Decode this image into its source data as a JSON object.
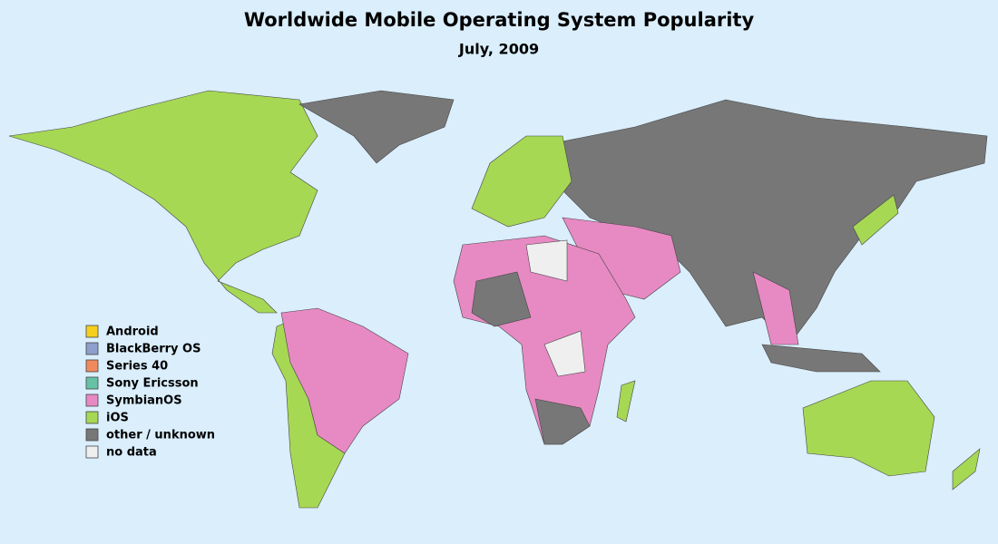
{
  "title": "Worldwide Mobile Operating System Popularity",
  "subtitle": "July, 2009",
  "background": "#daeefc",
  "legend": {
    "items": [
      {
        "label": "Android",
        "color": "#f6cf1f"
      },
      {
        "label": "BlackBerry OS",
        "color": "#8d9fcb"
      },
      {
        "label": "Series 40",
        "color": "#f08a5d"
      },
      {
        "label": "Sony Ericsson",
        "color": "#66c2a5"
      },
      {
        "label": "SymbianOS",
        "color": "#e78ac3"
      },
      {
        "label": "iOS",
        "color": "#a6d854"
      },
      {
        "label": "other / unknown",
        "color": "#777777"
      },
      {
        "label": "no data",
        "color": "#efefef"
      }
    ]
  }
}
